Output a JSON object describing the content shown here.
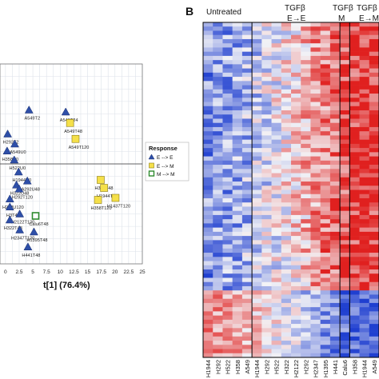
{
  "panel_a": {
    "chart_data": {
      "type": "scatter",
      "xlabel": "t[1] (76.4%)",
      "x_ticks": [
        "0",
        "2.5",
        "5",
        "7.5",
        "10",
        "12.5",
        "15",
        "17.5",
        "20",
        "22.5",
        "25"
      ],
      "xlim": [
        -1,
        25
      ],
      "ylim": [
        -10,
        10
      ],
      "series": [
        {
          "symbol": "triangle",
          "color": "#2e4fa8",
          "points": [
            {
              "label": "A549T2",
              "x": 4.3,
              "y": 5.4
            },
            {
              "label": "A549T24",
              "x": 11.0,
              "y": 5.2
            },
            {
              "label": "H292T2",
              "x": 0.4,
              "y": 3.0
            },
            {
              "label": "A549U0",
              "x": 1.7,
              "y": 2.0
            },
            {
              "label": "H358U0",
              "x": 0.3,
              "y": 1.3
            },
            {
              "label": "H522U0",
              "x": 1.6,
              "y": 0.4
            },
            {
              "label": "H1944U0",
              "x": 2.4,
              "y": -0.8
            },
            {
              "label": "A292U48",
              "x": 4.0,
              "y": -1.7
            },
            {
              "label": "H322U48",
              "x": 2.0,
              "y": -2.1
            },
            {
              "label": "H292T120",
              "x": 2.5,
              "y": -2.5
            },
            {
              "label": "H292U120",
              "x": 0.8,
              "y": -3.5
            },
            {
              "label": "H3T48",
              "x": 0.8,
              "y": -4.3
            },
            {
              "label": "H2122T120",
              "x": 2.6,
              "y": -5.0
            },
            {
              "label": "H322T48",
              "x": 0.8,
              "y": -5.6
            },
            {
              "label": "H2347T120",
              "x": 2.6,
              "y": -6.6
            },
            {
              "label": "H1395T48",
              "x": 5.2,
              "y": -6.8
            },
            {
              "label": "H441T48",
              "x": 4.1,
              "y": -8.3
            }
          ]
        },
        {
          "symbol": "square",
          "color": "#f5e04a",
          "points": [
            {
              "label": "A549T48",
              "x": 11.8,
              "y": 4.1
            },
            {
              "label": "A549T120",
              "x": 12.8,
              "y": 2.5
            },
            {
              "label": "H358T48",
              "x": 17.4,
              "y": -1.6
            },
            {
              "label": "H1944T48",
              "x": 18.0,
              "y": -2.4
            },
            {
              "label": "H358T120",
              "x": 16.9,
              "y": -3.6
            },
            {
              "label": "H1437T120",
              "x": 20.1,
              "y": -3.4
            }
          ]
        },
        {
          "symbol": "square-open",
          "color": "#2e8a2e",
          "points": [
            {
              "label": "Calu6T48",
              "x": 5.5,
              "y": -5.2
            }
          ]
        }
      ],
      "legend": {
        "title": "Response",
        "position": "right",
        "entries": [
          "E --> E",
          "E --> M",
          "M --> M"
        ]
      }
    }
  },
  "panel_b": {
    "letter": "B",
    "chart_data": {
      "type": "heatmap",
      "group_headers": [
        {
          "lines": [
            "Untreated"
          ]
        },
        {
          "lines": [
            "TGFβ",
            "E→E"
          ]
        },
        {
          "lines": [
            "TGFβ",
            "M"
          ]
        },
        {
          "lines": [
            "TGFβ",
            "E→M"
          ]
        }
      ],
      "columns": [
        "H1944",
        "H292",
        "H522",
        "H358",
        "A549",
        "H1944",
        "H292",
        "H522",
        "H322",
        "H2122",
        "H292",
        "H2347",
        "H1395",
        "H441",
        "Calu6",
        "H358",
        "H1944",
        "A549"
      ],
      "colors": {
        "low": "#1f3fd0",
        "mid": "#f3f3f6",
        "high": "#e0201f"
      }
    }
  }
}
